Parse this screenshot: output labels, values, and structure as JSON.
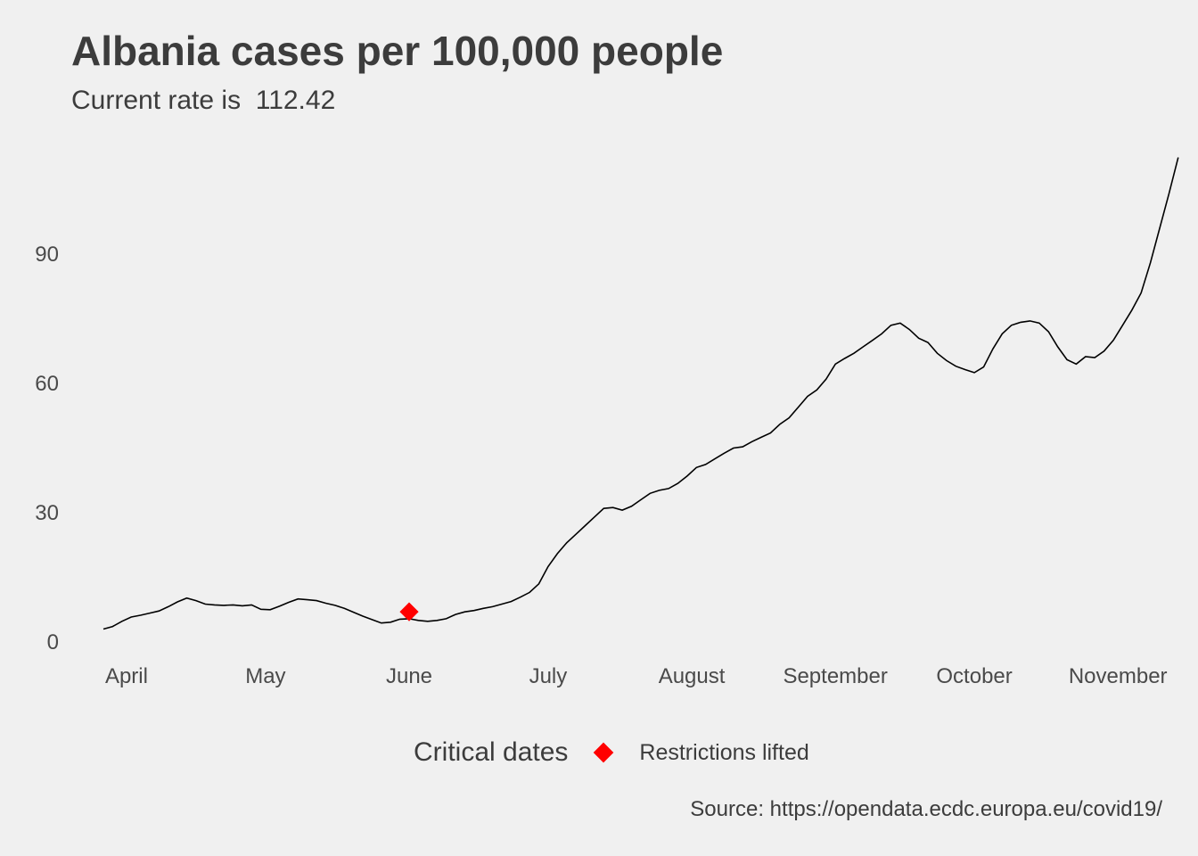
{
  "chart_data": {
    "type": "line",
    "title": "Albania cases per 100,000 people",
    "subtitle": "Current rate is  112.42",
    "xlabel": "",
    "ylabel": "",
    "x_range": [
      "2020-03-22",
      "2020-11-05"
    ],
    "ylim": [
      0,
      120
    ],
    "y_ticks": [
      0,
      30,
      60,
      90
    ],
    "x_ticks": [
      {
        "date": "2020-04-01",
        "label": "April"
      },
      {
        "date": "2020-05-01",
        "label": "May"
      },
      {
        "date": "2020-06-01",
        "label": "June"
      },
      {
        "date": "2020-07-01",
        "label": "July"
      },
      {
        "date": "2020-08-01",
        "label": "August"
      },
      {
        "date": "2020-09-01",
        "label": "September"
      },
      {
        "date": "2020-10-01",
        "label": "October"
      },
      {
        "date": "2020-11-01",
        "label": "November"
      }
    ],
    "grid": false,
    "series": [
      {
        "color": "#000000",
        "points": [
          [
            "2020-03-27",
            3.0
          ],
          [
            "2020-03-29",
            3.6
          ],
          [
            "2020-03-31",
            4.8
          ],
          [
            "2020-04-02",
            5.8
          ],
          [
            "2020-04-04",
            6.2
          ],
          [
            "2020-04-06",
            6.7
          ],
          [
            "2020-04-08",
            7.2
          ],
          [
            "2020-04-10",
            8.2
          ],
          [
            "2020-04-12",
            9.3
          ],
          [
            "2020-04-14",
            10.2
          ],
          [
            "2020-04-16",
            9.6
          ],
          [
            "2020-04-18",
            8.8
          ],
          [
            "2020-04-20",
            8.6
          ],
          [
            "2020-04-22",
            8.5
          ],
          [
            "2020-04-24",
            8.6
          ],
          [
            "2020-04-26",
            8.4
          ],
          [
            "2020-04-28",
            8.6
          ],
          [
            "2020-04-30",
            7.6
          ],
          [
            "2020-05-02",
            7.5
          ],
          [
            "2020-05-04",
            8.3
          ],
          [
            "2020-05-06",
            9.2
          ],
          [
            "2020-05-08",
            10.0
          ],
          [
            "2020-05-10",
            9.8
          ],
          [
            "2020-05-12",
            9.6
          ],
          [
            "2020-05-14",
            9.0
          ],
          [
            "2020-05-16",
            8.5
          ],
          [
            "2020-05-18",
            7.8
          ],
          [
            "2020-05-20",
            6.9
          ],
          [
            "2020-05-22",
            6.0
          ],
          [
            "2020-05-24",
            5.2
          ],
          [
            "2020-05-26",
            4.4
          ],
          [
            "2020-05-28",
            4.6
          ],
          [
            "2020-05-30",
            5.3
          ],
          [
            "2020-06-01",
            5.4
          ],
          [
            "2020-06-03",
            5.0
          ],
          [
            "2020-06-05",
            4.8
          ],
          [
            "2020-06-07",
            5.0
          ],
          [
            "2020-06-09",
            5.4
          ],
          [
            "2020-06-11",
            6.4
          ],
          [
            "2020-06-13",
            7.0
          ],
          [
            "2020-06-15",
            7.3
          ],
          [
            "2020-06-17",
            7.8
          ],
          [
            "2020-06-19",
            8.2
          ],
          [
            "2020-06-21",
            8.8
          ],
          [
            "2020-06-23",
            9.4
          ],
          [
            "2020-06-25",
            10.4
          ],
          [
            "2020-06-27",
            11.5
          ],
          [
            "2020-06-29",
            13.5
          ],
          [
            "2020-07-01",
            17.5
          ],
          [
            "2020-07-03",
            20.5
          ],
          [
            "2020-07-05",
            23.0
          ],
          [
            "2020-07-07",
            25.0
          ],
          [
            "2020-07-09",
            27.0
          ],
          [
            "2020-07-11",
            29.0
          ],
          [
            "2020-07-13",
            31.0
          ],
          [
            "2020-07-15",
            31.2
          ],
          [
            "2020-07-17",
            30.6
          ],
          [
            "2020-07-19",
            31.5
          ],
          [
            "2020-07-21",
            33.0
          ],
          [
            "2020-07-23",
            34.5
          ],
          [
            "2020-07-25",
            35.2
          ],
          [
            "2020-07-27",
            35.6
          ],
          [
            "2020-07-29",
            36.8
          ],
          [
            "2020-07-31",
            38.5
          ],
          [
            "2020-08-02",
            40.5
          ],
          [
            "2020-08-04",
            41.2
          ],
          [
            "2020-08-06",
            42.5
          ],
          [
            "2020-08-08",
            43.8
          ],
          [
            "2020-08-10",
            45.0
          ],
          [
            "2020-08-12",
            45.3
          ],
          [
            "2020-08-14",
            46.5
          ],
          [
            "2020-08-16",
            47.5
          ],
          [
            "2020-08-18",
            48.5
          ],
          [
            "2020-08-20",
            50.5
          ],
          [
            "2020-08-22",
            52.0
          ],
          [
            "2020-08-24",
            54.5
          ],
          [
            "2020-08-26",
            57.0
          ],
          [
            "2020-08-28",
            58.5
          ],
          [
            "2020-08-30",
            61.0
          ],
          [
            "2020-09-01",
            64.5
          ],
          [
            "2020-09-03",
            65.8
          ],
          [
            "2020-09-05",
            67.0
          ],
          [
            "2020-09-07",
            68.5
          ],
          [
            "2020-09-09",
            70.0
          ],
          [
            "2020-09-11",
            71.5
          ],
          [
            "2020-09-13",
            73.5
          ],
          [
            "2020-09-15",
            74.0
          ],
          [
            "2020-09-17",
            72.5
          ],
          [
            "2020-09-19",
            70.5
          ],
          [
            "2020-09-21",
            69.5
          ],
          [
            "2020-09-23",
            67.0
          ],
          [
            "2020-09-25",
            65.3
          ],
          [
            "2020-09-27",
            64.0
          ],
          [
            "2020-09-29",
            63.2
          ],
          [
            "2020-10-01",
            62.5
          ],
          [
            "2020-10-03",
            63.8
          ],
          [
            "2020-10-05",
            68.0
          ],
          [
            "2020-10-07",
            71.5
          ],
          [
            "2020-10-09",
            73.5
          ],
          [
            "2020-10-11",
            74.2
          ],
          [
            "2020-10-13",
            74.5
          ],
          [
            "2020-10-15",
            74.0
          ],
          [
            "2020-10-17",
            72.0
          ],
          [
            "2020-10-19",
            68.5
          ],
          [
            "2020-10-21",
            65.5
          ],
          [
            "2020-10-23",
            64.5
          ],
          [
            "2020-10-25",
            66.2
          ],
          [
            "2020-10-27",
            66.0
          ],
          [
            "2020-10-29",
            67.5
          ],
          [
            "2020-10-31",
            70.0
          ],
          [
            "2020-11-02",
            73.5
          ],
          [
            "2020-11-04",
            77.0
          ],
          [
            "2020-11-06",
            81.0
          ],
          [
            "2020-11-08",
            88.0
          ],
          [
            "2020-11-10",
            96.0
          ],
          [
            "2020-11-12",
            104.0
          ],
          [
            "2020-11-14",
            112.42
          ]
        ]
      }
    ],
    "markers": [
      {
        "date": "2020-06-01",
        "value": 7.0,
        "label": "Restrictions lifted",
        "color": "#ff0000",
        "shape": "diamond"
      }
    ],
    "legend": {
      "title": "Critical dates",
      "placement": "bottom",
      "entries": [
        {
          "label": "Restrictions lifted",
          "color": "#ff0000",
          "shape": "diamond"
        }
      ]
    },
    "caption": "Source: https://opendata.ecdc.europa.eu/covid19/"
  }
}
